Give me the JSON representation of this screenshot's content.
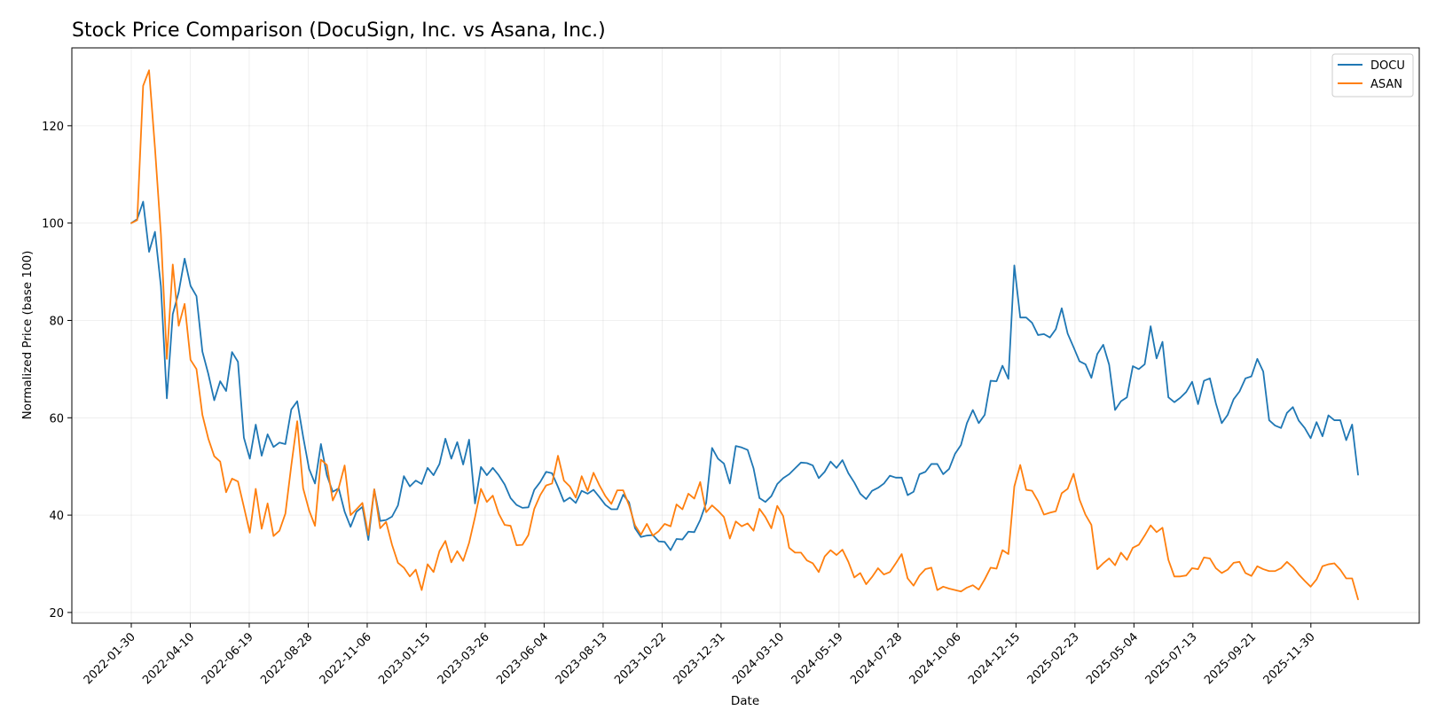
{
  "chart_data": {
    "type": "line",
    "title": "Stock Price Comparison (DocuSign, Inc. vs Asana, Inc.)",
    "xlabel": "Date",
    "ylabel": "Normalized Price (base 100)",
    "ylim": [
      17.8,
      136
    ],
    "yticks": [
      20,
      40,
      60,
      80,
      100,
      120
    ],
    "x_start": "2022-01-30",
    "x_end": "2026-01-25",
    "xticks": [
      "2022-01-30",
      "2022-04-10",
      "2022-06-19",
      "2022-08-28",
      "2022-11-06",
      "2023-01-15",
      "2023-03-26",
      "2023-06-04",
      "2023-08-13",
      "2023-10-22",
      "2023-12-31",
      "2024-03-10",
      "2024-05-19",
      "2024-07-28",
      "2024-10-06",
      "2024-12-15",
      "2025-02-23",
      "2025-05-04",
      "2025-07-13",
      "2025-09-21",
      "2025-11-30"
    ],
    "grid": true,
    "legend_position": "upper right",
    "series": [
      {
        "name": "DOCU",
        "color": "#1f77b4",
        "values": [
          100,
          100.8,
          104.4,
          94.1,
          98.2,
          87,
          64,
          81.3,
          85.8,
          92.7,
          87.1,
          85,
          73.6,
          69,
          63.6,
          67.5,
          65.5,
          73.5,
          71.5,
          55.9,
          51.6,
          58.6,
          52.2,
          56.6,
          54,
          54.9,
          54.6,
          61.7,
          63.4,
          56.1,
          49.5,
          46.5,
          54.6,
          48.2,
          44.8,
          45.5,
          40.7,
          37.6,
          40.7,
          41.7,
          34.9,
          45.3,
          38.8,
          39,
          39.7,
          42,
          48,
          45.9,
          47.1,
          46.4,
          49.7,
          48.2,
          50.5,
          55.7,
          51.6,
          55,
          50.4,
          55.5,
          42.4,
          49.9,
          48.2,
          49.7,
          48.2,
          46.3,
          43.5,
          42.1,
          41.5,
          41.6,
          45.2,
          46.8,
          48.9,
          48.6,
          45.8,
          42.8,
          43.6,
          42.5,
          45,
          44.4,
          45.2,
          43.7,
          42.1,
          41.2,
          41.2,
          44.2,
          42.6,
          37.3,
          35.5,
          35.8,
          35.9,
          34.6,
          34.5,
          32.8,
          35.1,
          35,
          36.6,
          36.5,
          39,
          42.5,
          53.8,
          51.6,
          50.6,
          46.5,
          54.2,
          53.9,
          53.4,
          49.6,
          43.5,
          42.7,
          43.9,
          46.4,
          47.6,
          48.4,
          49.6,
          50.8,
          50.7,
          50.2,
          47.6,
          48.9,
          51,
          49.7,
          51.3,
          48.6,
          46.7,
          44.4,
          43.3,
          45,
          45.6,
          46.5,
          48.1,
          47.7,
          47.7,
          44.1,
          44.8,
          48.4,
          48.9,
          50.5,
          50.5,
          48.4,
          49.5,
          52.6,
          54.4,
          58.9,
          61.6,
          58.9,
          60.6,
          67.6,
          67.5,
          70.7,
          68,
          91.3,
          80.6,
          80.6,
          79.5,
          77,
          77.2,
          76.5,
          78.2,
          82.5,
          77.3,
          74.5,
          71.6,
          71,
          68.2,
          73.1,
          75,
          70.9,
          61.6,
          63.4,
          64.2,
          70.6,
          70,
          71,
          78.8,
          72.2,
          75.6,
          64.2,
          63.2,
          64.1,
          65.3,
          67.4,
          62.8,
          67.6,
          68.1,
          63,
          58.9,
          60.6,
          63.8,
          65.4,
          68.1,
          68.5,
          72.1,
          69.5,
          59.5,
          58.4,
          57.9,
          61,
          62.2,
          59.4,
          57.9,
          55.8,
          59.1,
          56.2,
          60.5,
          59.5,
          59.5,
          55.4,
          58.6,
          48.3
        ]
      },
      {
        "name": "ASAN",
        "color": "#ff7f0e",
        "values": [
          100,
          100.6,
          128.2,
          131.4,
          115.4,
          97.7,
          72.1,
          91.5,
          78.9,
          83.4,
          71.9,
          70,
          60.6,
          55.7,
          52.1,
          51,
          44.7,
          47.5,
          46.9,
          41.7,
          36.4,
          45.4,
          37.2,
          42.4,
          35.7,
          36.8,
          40.3,
          50.2,
          59.3,
          45.5,
          41,
          37.8,
          51.4,
          50.3,
          43,
          45.6,
          50.2,
          40,
          41.2,
          42.5,
          35.9,
          45.3,
          37.3,
          38.6,
          33.9,
          30.2,
          29.2,
          27.4,
          28.8,
          24.6,
          29.9,
          28.3,
          32.6,
          34.7,
          30.3,
          32.6,
          30.6,
          34.3,
          39.6,
          45.4,
          42.7,
          44,
          40.3,
          38,
          37.8,
          33.8,
          33.9,
          35.9,
          41.3,
          44.1,
          46.1,
          46.5,
          52.2,
          47.1,
          45.9,
          43.6,
          48,
          45,
          48.7,
          46.1,
          43.9,
          42.3,
          45.1,
          45.1,
          42,
          37.9,
          36,
          38.2,
          35.8,
          36.7,
          38.2,
          37.7,
          42.2,
          41.2,
          44.4,
          43.4,
          46.8,
          40.6,
          42,
          40.9,
          39.6,
          35.2,
          38.7,
          37.7,
          38.3,
          36.8,
          41.3,
          39.6,
          37.3,
          41.9,
          39.8,
          33.3,
          32.3,
          32.3,
          30.7,
          30.1,
          28.3,
          31.5,
          32.8,
          31.8,
          32.9,
          30.4,
          27.2,
          28.1,
          25.8,
          27.3,
          29.1,
          27.8,
          28.3,
          30.1,
          32,
          27,
          25.5,
          27.6,
          28.9,
          29.2,
          24.6,
          25.3,
          24.9,
          24.6,
          24.3,
          25.1,
          25.6,
          24.7,
          26.8,
          29.2,
          29,
          32.8,
          32,
          45.9,
          50.3,
          45.2,
          45,
          42.9,
          40.1,
          40.5,
          40.8,
          44.5,
          45.4,
          48.5,
          43.2,
          40.1,
          38,
          28.9,
          30.1,
          31.1,
          29.7,
          32.3,
          30.8,
          33.3,
          33.9,
          35.8,
          37.9,
          36.5,
          37.4,
          30.8,
          27.4,
          27.4,
          27.6,
          29.1,
          28.9,
          31.3,
          31.1,
          29.1,
          28.1,
          28.8,
          30.2,
          30.4,
          28.1,
          27.5,
          29.5,
          28.9,
          28.5,
          28.5,
          29.1,
          30.4,
          29.3,
          27.8,
          26.5,
          25.3,
          26.8,
          29.5,
          29.9,
          30.1,
          28.8,
          27,
          27,
          22.7
        ]
      }
    ]
  }
}
